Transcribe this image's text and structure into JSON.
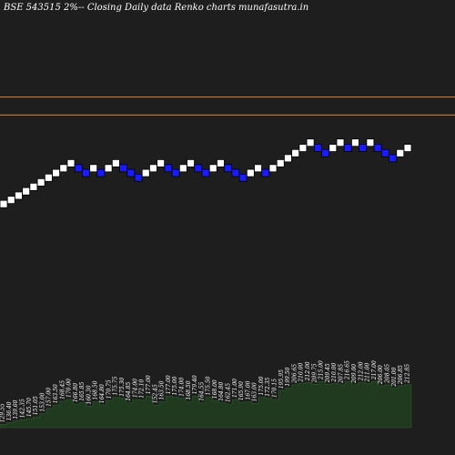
{
  "chart_data": {
    "type": "renko",
    "title": "BSE 543515 2%-- Closing Daily data  Renko  charts munafasutra.in",
    "colors": {
      "background": "#1e1e1e",
      "up_brick": "#ffffff",
      "down_brick": "#1a1aff",
      "brick_border": "#000000",
      "reference_line": "#d9882a",
      "volume_fill": "#1f3a1f",
      "label_text": "#ffffff"
    },
    "reference_lines": [
      211.0,
      199.0
    ],
    "bricks": [
      {
        "dir": "up",
        "close": 139.6
      },
      {
        "dir": "up",
        "close": 142.35
      },
      {
        "dir": "up",
        "close": 145.2
      },
      {
        "dir": "up",
        "close": 148.1
      },
      {
        "dir": "up",
        "close": 151.05
      },
      {
        "dir": "up",
        "close": 154.05
      },
      {
        "dir": "up",
        "close": 157.15
      },
      {
        "dir": "up",
        "close": 160.3
      },
      {
        "dir": "up",
        "close": 163.5
      },
      {
        "dir": "up",
        "close": 166.8
      },
      {
        "dir": "down",
        "close": 163.5
      },
      {
        "dir": "down",
        "close": 160.3
      },
      {
        "dir": "up",
        "close": 163.5
      },
      {
        "dir": "down",
        "close": 160.3
      },
      {
        "dir": "up",
        "close": 163.5
      },
      {
        "dir": "up",
        "close": 166.8
      },
      {
        "dir": "down",
        "close": 163.5
      },
      {
        "dir": "down",
        "close": 160.3
      },
      {
        "dir": "down",
        "close": 157.15
      },
      {
        "dir": "up",
        "close": 160.3
      },
      {
        "dir": "up",
        "close": 163.5
      },
      {
        "dir": "up",
        "close": 166.8
      },
      {
        "dir": "down",
        "close": 163.5
      },
      {
        "dir": "down",
        "close": 160.3
      },
      {
        "dir": "up",
        "close": 163.5
      },
      {
        "dir": "up",
        "close": 166.8
      },
      {
        "dir": "down",
        "close": 163.5
      },
      {
        "dir": "down",
        "close": 160.3
      },
      {
        "dir": "up",
        "close": 163.5
      },
      {
        "dir": "up",
        "close": 166.8
      },
      {
        "dir": "down",
        "close": 163.5
      },
      {
        "dir": "down",
        "close": 160.3
      },
      {
        "dir": "down",
        "close": 157.15
      },
      {
        "dir": "up",
        "close": 160.3
      },
      {
        "dir": "up",
        "close": 163.5
      },
      {
        "dir": "down",
        "close": 160.3
      },
      {
        "dir": "up",
        "close": 163.5
      },
      {
        "dir": "up",
        "close": 166.8
      },
      {
        "dir": "up",
        "close": 170.15
      },
      {
        "dir": "up",
        "close": 173.55
      },
      {
        "dir": "up",
        "close": 177.0
      },
      {
        "dir": "up",
        "close": 180.55
      },
      {
        "dir": "down",
        "close": 177.0
      },
      {
        "dir": "down",
        "close": 173.55
      },
      {
        "dir": "up",
        "close": 177.0
      },
      {
        "dir": "up",
        "close": 180.55
      },
      {
        "dir": "down",
        "close": 177.0
      },
      {
        "dir": "up",
        "close": 180.55
      },
      {
        "dir": "down",
        "close": 177.0
      },
      {
        "dir": "up",
        "close": 180.55
      },
      {
        "dir": "down",
        "close": 177.0
      },
      {
        "dir": "down",
        "close": 173.55
      },
      {
        "dir": "down",
        "close": 170.15
      },
      {
        "dir": "up",
        "close": 173.55
      },
      {
        "dir": "up",
        "close": 177.0
      }
    ],
    "volume_labels": [
      "129.55",
      "136.40",
      "139.60",
      "142.35",
      "145.70",
      "151.05",
      "153.00",
      "157.00",
      "163.50",
      "168.45",
      "170.00",
      "166.80",
      "165.85",
      "160.30",
      "168.50",
      "164.80",
      "170.75",
      "175.75",
      "175.30",
      "164.85",
      "174.00",
      "172.10",
      "177.00",
      "152.45",
      "163.50",
      "177.00",
      "175.00",
      "174.00",
      "168.50",
      "179.40",
      "164.55",
      "175.50",
      "168.00",
      "164.80",
      "162.45",
      "171.00",
      "165.90",
      "167.00",
      "163.00",
      "175.00",
      "172.35",
      "170.15",
      "195.95",
      "199.50",
      "206.65",
      "210.00",
      "212.00",
      "209.75",
      "215.00",
      "209.45",
      "210.00",
      "207.85",
      "216.65",
      "209.00",
      "212.00",
      "211.00",
      "217.00",
      "206.00",
      "208.05",
      "201.00",
      "206.85",
      "212.85"
    ],
    "volume_values": [
      6,
      9,
      12,
      14,
      16,
      19,
      25,
      34,
      40,
      47,
      50,
      42,
      44,
      38,
      46,
      40,
      48,
      54,
      52,
      44,
      50,
      49,
      56,
      40,
      46,
      56,
      54,
      52,
      46,
      56,
      44,
      54,
      48,
      44,
      42,
      50,
      45,
      46,
      43,
      54,
      52,
      50,
      66,
      70,
      76,
      78,
      80,
      77,
      82,
      77,
      78,
      76,
      82,
      76,
      80,
      78,
      82,
      74,
      76,
      70,
      74,
      76
    ]
  }
}
